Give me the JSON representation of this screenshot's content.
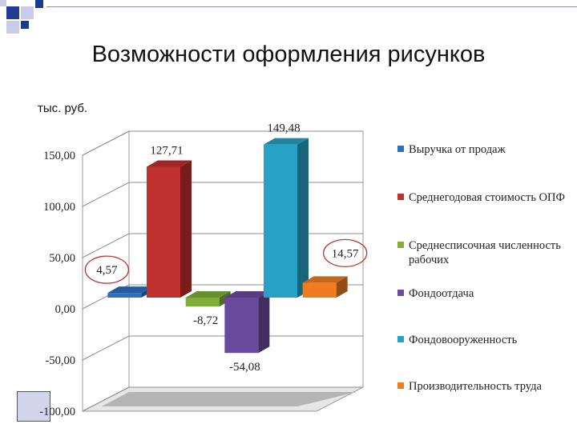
{
  "slide": {
    "title": "Возможности оформления рисунков",
    "unit_label": "тыс. руб."
  },
  "colors": {
    "deco_blue": "#1f3a93",
    "deco_light": "#c8cce8",
    "deco_box": "#d3d3ec"
  },
  "chart_data": {
    "type": "bar",
    "title": "",
    "xlabel": "",
    "ylabel": "",
    "ylim": [
      -100,
      150
    ],
    "yticks": [
      150,
      100,
      50,
      0,
      -50,
      -100
    ],
    "ytick_labels": [
      "150,00",
      "100,00",
      "50,00",
      "0,00",
      "-50,00",
      "-100,00"
    ],
    "grid": true,
    "legend_position": "right",
    "series": [
      {
        "name": "Выручка от продаж",
        "value": 4.57,
        "label": "4,57",
        "color": "#2e6fc0",
        "circled": true
      },
      {
        "name": "Среднегодовая стоимость ОПФ",
        "value": 127.71,
        "label": "127,71",
        "color": "#c0302e",
        "circled": false
      },
      {
        "name": "Среднесписочная численность рабочих",
        "value": -8.72,
        "label": "-8,72",
        "color": "#7fae3a",
        "circled": false
      },
      {
        "name": "Фондоотдача",
        "value": -54.08,
        "label": "-54,08",
        "color": "#6a4a9c",
        "circled": false
      },
      {
        "name": "Фондовооруженность",
        "value": 149.48,
        "label": "149,48",
        "color": "#27a2c6",
        "circled": false
      },
      {
        "name": "Производительность труда",
        "value": 14.57,
        "label": "14,57",
        "color": "#ee7d22",
        "circled": true
      }
    ]
  }
}
